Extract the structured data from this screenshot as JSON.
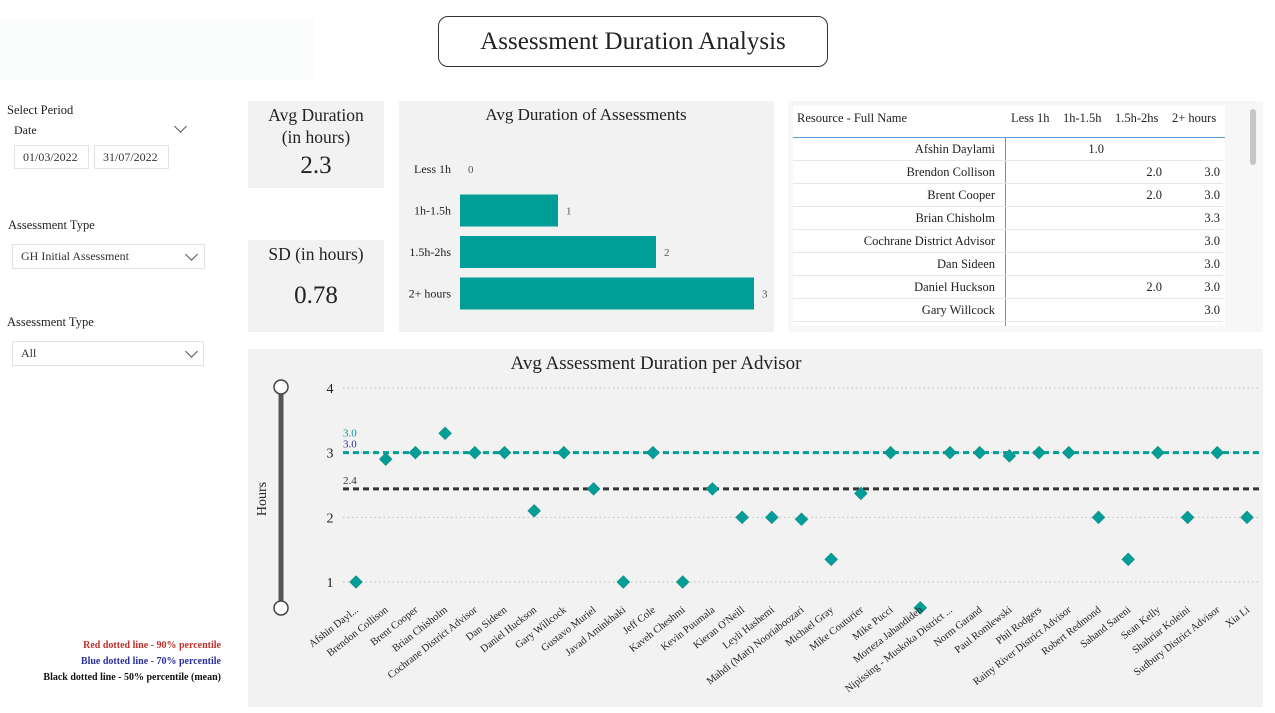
{
  "title": "Assessment Duration Analysis",
  "filters": {
    "period_label": "Select Period",
    "date_label": "Date",
    "date_from": "01/03/2022",
    "date_to": "31/07/2022",
    "type1_label": "Assessment Type",
    "type1_value": "GH Initial Assessment",
    "type2_label": "Assessment Type",
    "type2_value": "All"
  },
  "kpi": {
    "avg_title_1": "Avg Duration",
    "avg_title_2": "(in hours)",
    "avg_value": "2.3",
    "sd_title": "SD (in hours)",
    "sd_value": "0.78"
  },
  "table": {
    "headers": [
      "Resource - Full Name",
      "Less 1h",
      "1h-1.5h",
      "1.5h-2hs",
      "2+ hours"
    ],
    "rows": [
      {
        "name": "Afshin Daylami",
        "less1": "",
        "h1_15": "1.0",
        "h15_2": "",
        "h2p": ""
      },
      {
        "name": "Brendon Collison",
        "less1": "",
        "h1_15": "",
        "h15_2": "2.0",
        "h2p": "3.0"
      },
      {
        "name": "Brent Cooper",
        "less1": "",
        "h1_15": "",
        "h15_2": "2.0",
        "h2p": "3.0"
      },
      {
        "name": "Brian Chisholm",
        "less1": "",
        "h1_15": "",
        "h15_2": "",
        "h2p": "3.3"
      },
      {
        "name": "Cochrane District Advisor",
        "less1": "",
        "h1_15": "",
        "h15_2": "",
        "h2p": "3.0"
      },
      {
        "name": "Dan Sideen",
        "less1": "",
        "h1_15": "",
        "h15_2": "",
        "h2p": "3.0"
      },
      {
        "name": "Daniel Huckson",
        "less1": "",
        "h1_15": "",
        "h15_2": "2.0",
        "h2p": "3.0"
      },
      {
        "name": "Gary Willcock",
        "less1": "",
        "h1_15": "",
        "h15_2": "",
        "h2p": "3.0"
      }
    ]
  },
  "legend_notes": {
    "red": "Red dotted line - 90% percentile",
    "blue": "Blue dotted line - 70% percentile",
    "black": "Black dotted line - 50% percentile (mean)"
  },
  "colors": {
    "teal": "#009e96",
    "black_line": "#333333",
    "blue_text": "#2b2f9e",
    "red_text": "#c0302b"
  },
  "chart_data": [
    {
      "type": "bar",
      "orientation": "horizontal",
      "title": "Avg Duration of Assessments",
      "categories": [
        "Less 1h",
        "1h-1.5h",
        "1.5h-2hs",
        "2+ hours"
      ],
      "values": [
        0,
        1,
        2,
        3
      ],
      "xlim": [
        0,
        3
      ]
    },
    {
      "type": "scatter",
      "title": "Avg Assessment Duration per Advisor",
      "ylabel": "Hours",
      "ylim": [
        0.6,
        4
      ],
      "yticks": [
        1,
        2,
        3,
        4
      ],
      "categories": [
        "Afshin Dayl...",
        "Brendon Collison",
        "Brent Cooper",
        "Brian Chisholm",
        "Cochrane District Advisor",
        "Dan Sideen",
        "Daniel Huckson",
        "Gary Willcock",
        "Gustavo Muriel",
        "Javad Aminkhaki",
        "Jeff Cole",
        "Kaveh Cheshmi",
        "Kevin Puumala",
        "Kieran O'Neill",
        "Leyli Hashemi",
        "Mahdi (Matt) Nooriaboozari",
        "Michael Gray",
        "Mike Couturier",
        "Mike Pucci",
        "Morteza Jahandideh",
        "Nipissing - Muskoka District ...",
        "Norm Garand",
        "Paul Romlewski",
        "Phil Rodgers",
        "Rainy River District Advisor",
        "Robert Redmond",
        "Sahand Sareni",
        "Sean Kelly",
        "Shahriar Koleini",
        "Sudbury District Advisor",
        "Xia Li"
      ],
      "values": [
        1.0,
        2.9,
        3.0,
        3.3,
        3.0,
        3.0,
        2.1,
        3.0,
        2.44,
        1.0,
        3.0,
        1.0,
        2.44,
        2.0,
        2.0,
        1.97,
        1.35,
        2.37,
        3.0,
        0.6,
        3.0,
        3.0,
        2.95,
        3.0,
        3.0,
        2.0,
        1.35,
        3.0,
        2.0,
        3.0,
        2.0
      ],
      "reference_lines": [
        {
          "label": "3.0",
          "value": 3.0,
          "color": "#009e96"
        },
        {
          "label": "3.0",
          "value": 3.0,
          "color": "#2b2f9e"
        },
        {
          "label": "2.4",
          "value": 2.44,
          "color": "#333333"
        }
      ],
      "series": [
        {
          "values": [
            1.0,
            2.9,
            3.0,
            3.3,
            3.0,
            3.0,
            2.1,
            3.0,
            2.44,
            1.0,
            3.0,
            1.0,
            2.44,
            2.0,
            2.0,
            1.97,
            1.35,
            2.37,
            3.0,
            0.6,
            3.0,
            3.0,
            2.95,
            3.0,
            3.0,
            2.0,
            1.35,
            3.0,
            2.0,
            3.0,
            2.0
          ]
        }
      ]
    }
  ]
}
